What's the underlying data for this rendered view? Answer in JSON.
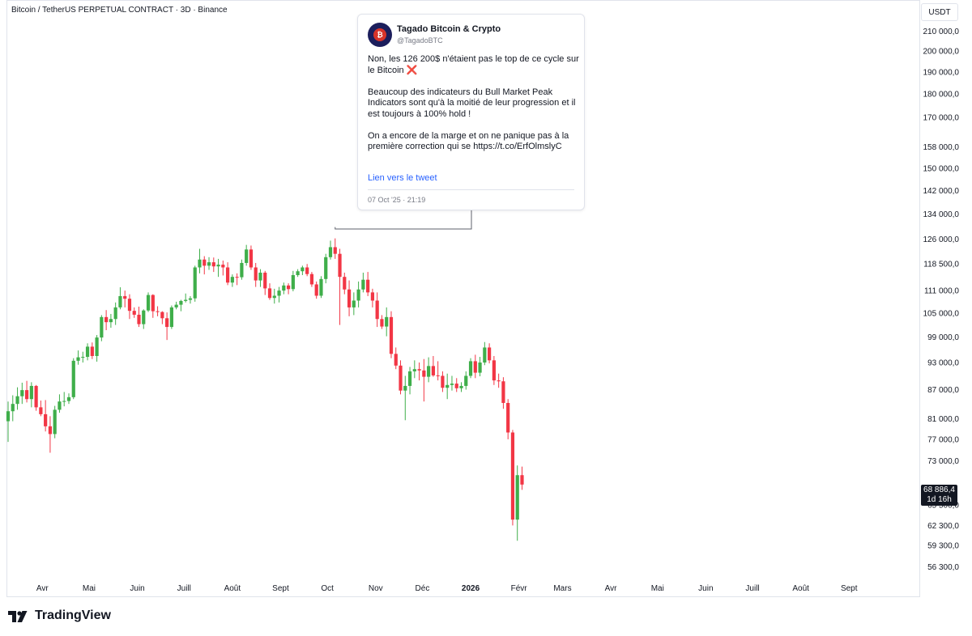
{
  "header": {
    "symbol_title": "Bitcoin / TetherUS PERPETUAL CONTRACT · 3D · Binance",
    "currency": "USDT"
  },
  "price_badge": {
    "price": "68 886,4",
    "countdown": "1d 16h"
  },
  "tweet": {
    "name": "Tagado Bitcoin & Crypto",
    "handle": "@TagadoBTC",
    "text": "Non, les 126 200$ n'étaient pas le top de ce cycle sur le Bitcoin ❌\n\nBeaucoup des indicateurs du Bull Market Peak Indicators sont qu'à la moitié de leur progression et il est toujours à 100% hold !\n\nOn a encore de la marge et on ne panique pas à la première correction qui se https://t.co/ErfOlmslyC",
    "link_label": "Lien vers le tweet",
    "date": "07 Oct '25 · 21:19"
  },
  "branding": {
    "logo_text": "TradingView"
  },
  "colors": {
    "up": "#26a69a",
    "up_green": "#3fae4a",
    "down": "#f23645",
    "axis_text": "#131722",
    "grid": "#e0e3eb"
  },
  "chart_data": {
    "type": "candlestick",
    "title": "Bitcoin / TetherUS PERPETUAL CONTRACT · 3D · Binance",
    "y_scale": "log",
    "ylim": [
      55000,
      225000
    ],
    "y_ticks": [
      {
        "value": 210000,
        "label": "210 000,0"
      },
      {
        "value": 200000,
        "label": "200 000,0"
      },
      {
        "value": 190000,
        "label": "190 000,0"
      },
      {
        "value": 180000,
        "label": "180 000,0"
      },
      {
        "value": 170000,
        "label": "170 000,0"
      },
      {
        "value": 158000,
        "label": "158 000,0"
      },
      {
        "value": 150000,
        "label": "150 000,0"
      },
      {
        "value": 142000,
        "label": "142 000,0"
      },
      {
        "value": 134000,
        "label": "134 000,0"
      },
      {
        "value": 126000,
        "label": "126 000,0"
      },
      {
        "value": 118500,
        "label": "118 500,0"
      },
      {
        "value": 111000,
        "label": "111 000,0"
      },
      {
        "value": 105000,
        "label": "105 000,0"
      },
      {
        "value": 99000,
        "label": "99 000,0"
      },
      {
        "value": 93000,
        "label": "93 000,0"
      },
      {
        "value": 87000,
        "label": "87 000,0"
      },
      {
        "value": 81000,
        "label": "81 000,0"
      },
      {
        "value": 77000,
        "label": "77 000,0"
      },
      {
        "value": 73000,
        "label": "73 000,0"
      },
      {
        "value": 65500,
        "label": "65 500,0"
      },
      {
        "value": 62300,
        "label": "62 300,0"
      },
      {
        "value": 59300,
        "label": "59 300,0"
      },
      {
        "value": 56300,
        "label": "56 300,0"
      }
    ],
    "x_range": [
      "2025-03-10",
      "2026-09-30"
    ],
    "x_ticks": [
      {
        "date": "2025-04-01",
        "label": "Avr",
        "bold": false
      },
      {
        "date": "2025-05-01",
        "label": "Mai",
        "bold": false
      },
      {
        "date": "2025-06-01",
        "label": "Juin",
        "bold": false
      },
      {
        "date": "2025-07-01",
        "label": "Juill",
        "bold": false
      },
      {
        "date": "2025-08-01",
        "label": "Août",
        "bold": false
      },
      {
        "date": "2025-09-01",
        "label": "Sept",
        "bold": false
      },
      {
        "date": "2025-10-01",
        "label": "Oct",
        "bold": false
      },
      {
        "date": "2025-11-01",
        "label": "Nov",
        "bold": false
      },
      {
        "date": "2025-12-01",
        "label": "Déc",
        "bold": false
      },
      {
        "date": "2026-01-01",
        "label": "2026",
        "bold": true
      },
      {
        "date": "2026-02-01",
        "label": "Févr",
        "bold": false
      },
      {
        "date": "2026-03-01",
        "label": "Mars",
        "bold": false
      },
      {
        "date": "2026-04-01",
        "label": "Avr",
        "bold": false
      },
      {
        "date": "2026-05-01",
        "label": "Mai",
        "bold": false
      },
      {
        "date": "2026-06-01",
        "label": "Juin",
        "bold": false
      },
      {
        "date": "2026-07-01",
        "label": "Juill",
        "bold": false
      },
      {
        "date": "2026-08-01",
        "label": "Août",
        "bold": false
      },
      {
        "date": "2026-09-01",
        "label": "Sept",
        "bold": false
      }
    ],
    "candles": [
      {
        "date": "2025-03-10",
        "o": 80500,
        "h": 84500,
        "l": 76500,
        "c": 82500
      },
      {
        "date": "2025-03-13",
        "o": 82500,
        "h": 85800,
        "l": 80500,
        "c": 84000
      },
      {
        "date": "2025-03-16",
        "o": 84000,
        "h": 87500,
        "l": 82800,
        "c": 85600
      },
      {
        "date": "2025-03-19",
        "o": 85600,
        "h": 88500,
        "l": 84000,
        "c": 86900
      },
      {
        "date": "2025-03-22",
        "o": 86900,
        "h": 88900,
        "l": 84300,
        "c": 85000
      },
      {
        "date": "2025-03-25",
        "o": 85000,
        "h": 88600,
        "l": 83300,
        "c": 87800
      },
      {
        "date": "2025-03-28",
        "o": 87800,
        "h": 88000,
        "l": 82600,
        "c": 83300
      },
      {
        "date": "2025-03-31",
        "o": 83300,
        "h": 84700,
        "l": 81500,
        "c": 81900
      },
      {
        "date": "2025-04-03",
        "o": 81900,
        "h": 84800,
        "l": 78500,
        "c": 79500
      },
      {
        "date": "2025-04-06",
        "o": 79500,
        "h": 81500,
        "l": 74500,
        "c": 78000
      },
      {
        "date": "2025-04-09",
        "o": 78000,
        "h": 83600,
        "l": 77200,
        "c": 82800
      },
      {
        "date": "2025-04-12",
        "o": 82800,
        "h": 86000,
        "l": 82200,
        "c": 84500
      },
      {
        "date": "2025-04-15",
        "o": 84500,
        "h": 86500,
        "l": 83500,
        "c": 84600
      },
      {
        "date": "2025-04-18",
        "o": 84600,
        "h": 86200,
        "l": 84000,
        "c": 85400
      },
      {
        "date": "2025-04-21",
        "o": 85400,
        "h": 94000,
        "l": 85000,
        "c": 93400
      },
      {
        "date": "2025-04-24",
        "o": 93400,
        "h": 95800,
        "l": 92500,
        "c": 94200
      },
      {
        "date": "2025-04-27",
        "o": 94200,
        "h": 95500,
        "l": 93000,
        "c": 94300
      },
      {
        "date": "2025-04-30",
        "o": 94300,
        "h": 97500,
        "l": 93500,
        "c": 96700
      },
      {
        "date": "2025-05-03",
        "o": 96700,
        "h": 97700,
        "l": 93800,
        "c": 94500
      },
      {
        "date": "2025-05-06",
        "o": 94500,
        "h": 99500,
        "l": 93200,
        "c": 98900
      },
      {
        "date": "2025-05-09",
        "o": 98900,
        "h": 104500,
        "l": 98000,
        "c": 104000
      },
      {
        "date": "2025-05-12",
        "o": 104000,
        "h": 105800,
        "l": 100700,
        "c": 102700
      },
      {
        "date": "2025-05-15",
        "o": 102700,
        "h": 104800,
        "l": 101300,
        "c": 103500
      },
      {
        "date": "2025-05-18",
        "o": 103500,
        "h": 107800,
        "l": 102000,
        "c": 106500
      },
      {
        "date": "2025-05-21",
        "o": 106500,
        "h": 111900,
        "l": 106000,
        "c": 109500
      },
      {
        "date": "2025-05-24",
        "o": 109500,
        "h": 111000,
        "l": 106500,
        "c": 108800
      },
      {
        "date": "2025-05-27",
        "o": 108800,
        "h": 110000,
        "l": 103500,
        "c": 105600
      },
      {
        "date": "2025-05-30",
        "o": 105600,
        "h": 106500,
        "l": 103800,
        "c": 104600
      },
      {
        "date": "2025-06-02",
        "o": 104600,
        "h": 106700,
        "l": 101500,
        "c": 102200
      },
      {
        "date": "2025-06-05",
        "o": 102200,
        "h": 106000,
        "l": 101000,
        "c": 105700
      },
      {
        "date": "2025-06-08",
        "o": 105700,
        "h": 110500,
        "l": 105300,
        "c": 109800
      },
      {
        "date": "2025-06-11",
        "o": 109800,
        "h": 110000,
        "l": 103800,
        "c": 105500
      },
      {
        "date": "2025-06-14",
        "o": 105500,
        "h": 106800,
        "l": 104200,
        "c": 105300
      },
      {
        "date": "2025-06-17",
        "o": 105300,
        "h": 105500,
        "l": 102200,
        "c": 103700
      },
      {
        "date": "2025-06-20",
        "o": 103700,
        "h": 105200,
        "l": 98300,
        "c": 101500
      },
      {
        "date": "2025-06-23",
        "o": 101500,
        "h": 107000,
        "l": 101000,
        "c": 106500
      },
      {
        "date": "2025-06-26",
        "o": 106500,
        "h": 108000,
        "l": 106000,
        "c": 107200
      },
      {
        "date": "2025-06-29",
        "o": 107200,
        "h": 108500,
        "l": 105500,
        "c": 108200
      },
      {
        "date": "2025-07-02",
        "o": 108200,
        "h": 110200,
        "l": 107800,
        "c": 108500
      },
      {
        "date": "2025-07-05",
        "o": 108500,
        "h": 109500,
        "l": 107500,
        "c": 108900
      },
      {
        "date": "2025-07-08",
        "o": 108900,
        "h": 118000,
        "l": 108000,
        "c": 117500
      },
      {
        "date": "2025-07-11",
        "o": 117500,
        "h": 123000,
        "l": 115800,
        "c": 119800
      },
      {
        "date": "2025-07-14",
        "o": 119800,
        "h": 120800,
        "l": 115500,
        "c": 118000
      },
      {
        "date": "2025-07-17",
        "o": 118000,
        "h": 120500,
        "l": 116800,
        "c": 119000
      },
      {
        "date": "2025-07-20",
        "o": 119000,
        "h": 120400,
        "l": 116200,
        "c": 117800
      },
      {
        "date": "2025-07-23",
        "o": 117800,
        "h": 120000,
        "l": 114800,
        "c": 118300
      },
      {
        "date": "2025-07-26",
        "o": 118300,
        "h": 119500,
        "l": 115200,
        "c": 117500
      },
      {
        "date": "2025-07-29",
        "o": 117500,
        "h": 119000,
        "l": 112500,
        "c": 113200
      },
      {
        "date": "2025-08-01",
        "o": 113200,
        "h": 115500,
        "l": 112000,
        "c": 114800
      },
      {
        "date": "2025-08-04",
        "o": 114800,
        "h": 115800,
        "l": 112500,
        "c": 114700
      },
      {
        "date": "2025-08-07",
        "o": 114700,
        "h": 119800,
        "l": 114000,
        "c": 118800
      },
      {
        "date": "2025-08-10",
        "o": 118800,
        "h": 124200,
        "l": 118000,
        "c": 122800
      },
      {
        "date": "2025-08-13",
        "o": 122800,
        "h": 124000,
        "l": 116800,
        "c": 117500
      },
      {
        "date": "2025-08-16",
        "o": 117500,
        "h": 118800,
        "l": 112000,
        "c": 113800
      },
      {
        "date": "2025-08-19",
        "o": 113800,
        "h": 117000,
        "l": 112000,
        "c": 116000
      },
      {
        "date": "2025-08-22",
        "o": 116000,
        "h": 116500,
        "l": 109800,
        "c": 111600
      },
      {
        "date": "2025-08-25",
        "o": 111600,
        "h": 113000,
        "l": 108500,
        "c": 109000
      },
      {
        "date": "2025-08-28",
        "o": 109000,
        "h": 111500,
        "l": 107500,
        "c": 109600
      },
      {
        "date": "2025-08-31",
        "o": 109600,
        "h": 112000,
        "l": 107800,
        "c": 111000
      },
      {
        "date": "2025-09-03",
        "o": 111000,
        "h": 113200,
        "l": 110000,
        "c": 112400
      },
      {
        "date": "2025-09-06",
        "o": 112400,
        "h": 113000,
        "l": 110000,
        "c": 111400
      },
      {
        "date": "2025-09-09",
        "o": 111400,
        "h": 116500,
        "l": 110800,
        "c": 115300
      },
      {
        "date": "2025-09-12",
        "o": 115300,
        "h": 117000,
        "l": 114800,
        "c": 116400
      },
      {
        "date": "2025-09-15",
        "o": 116400,
        "h": 118000,
        "l": 115300,
        "c": 117500
      },
      {
        "date": "2025-09-18",
        "o": 117500,
        "h": 118500,
        "l": 115000,
        "c": 115600
      },
      {
        "date": "2025-09-21",
        "o": 115600,
        "h": 116200,
        "l": 112000,
        "c": 112700
      },
      {
        "date": "2025-09-24",
        "o": 112700,
        "h": 113500,
        "l": 108800,
        "c": 109600
      },
      {
        "date": "2025-09-27",
        "o": 109600,
        "h": 115000,
        "l": 109000,
        "c": 114200
      },
      {
        "date": "2025-09-30",
        "o": 114200,
        "h": 121500,
        "l": 113000,
        "c": 120500
      },
      {
        "date": "2025-10-03",
        "o": 120500,
        "h": 125500,
        "l": 119800,
        "c": 123500
      },
      {
        "date": "2025-10-06",
        "o": 123500,
        "h": 126200,
        "l": 120000,
        "c": 121500
      },
      {
        "date": "2025-10-09",
        "o": 121500,
        "h": 123000,
        "l": 102000,
        "c": 114800
      },
      {
        "date": "2025-10-12",
        "o": 114800,
        "h": 116000,
        "l": 110000,
        "c": 111300
      },
      {
        "date": "2025-10-15",
        "o": 111300,
        "h": 113800,
        "l": 104200,
        "c": 106500
      },
      {
        "date": "2025-10-18",
        "o": 106500,
        "h": 110500,
        "l": 104500,
        "c": 108300
      },
      {
        "date": "2025-10-21",
        "o": 108300,
        "h": 113500,
        "l": 106500,
        "c": 111300
      },
      {
        "date": "2025-10-24",
        "o": 111300,
        "h": 116000,
        "l": 110500,
        "c": 114000
      },
      {
        "date": "2025-10-27",
        "o": 114000,
        "h": 116200,
        "l": 109500,
        "c": 110500
      },
      {
        "date": "2025-10-30",
        "o": 110500,
        "h": 111500,
        "l": 106500,
        "c": 108300
      },
      {
        "date": "2025-11-02",
        "o": 108300,
        "h": 110500,
        "l": 101500,
        "c": 103500
      },
      {
        "date": "2025-11-05",
        "o": 103500,
        "h": 104500,
        "l": 101000,
        "c": 101600
      },
      {
        "date": "2025-11-08",
        "o": 101600,
        "h": 106500,
        "l": 99200,
        "c": 104000
      },
      {
        "date": "2025-11-11",
        "o": 104000,
        "h": 105500,
        "l": 94000,
        "c": 95000
      },
      {
        "date": "2025-11-14",
        "o": 95000,
        "h": 96500,
        "l": 91500,
        "c": 92300
      },
      {
        "date": "2025-11-17",
        "o": 92300,
        "h": 93500,
        "l": 86000,
        "c": 86800
      },
      {
        "date": "2025-11-20",
        "o": 86800,
        "h": 90000,
        "l": 80700,
        "c": 87800
      },
      {
        "date": "2025-11-23",
        "o": 87800,
        "h": 92000,
        "l": 86000,
        "c": 91000
      },
      {
        "date": "2025-11-26",
        "o": 91000,
        "h": 93500,
        "l": 89500,
        "c": 91500
      },
      {
        "date": "2025-11-29",
        "o": 91500,
        "h": 93000,
        "l": 89000,
        "c": 91200
      },
      {
        "date": "2025-12-02",
        "o": 91200,
        "h": 93800,
        "l": 84500,
        "c": 89800
      },
      {
        "date": "2025-12-05",
        "o": 89800,
        "h": 94200,
        "l": 88600,
        "c": 92200
      },
      {
        "date": "2025-12-08",
        "o": 92200,
        "h": 94500,
        "l": 89800,
        "c": 90100
      },
      {
        "date": "2025-12-11",
        "o": 90100,
        "h": 93300,
        "l": 89000,
        "c": 90000
      },
      {
        "date": "2025-12-14",
        "o": 90000,
        "h": 91000,
        "l": 86500,
        "c": 87400
      },
      {
        "date": "2025-12-17",
        "o": 87400,
        "h": 90500,
        "l": 85000,
        "c": 88000
      },
      {
        "date": "2025-12-20",
        "o": 88000,
        "h": 90000,
        "l": 86800,
        "c": 88300
      },
      {
        "date": "2025-12-23",
        "o": 88300,
        "h": 89500,
        "l": 86500,
        "c": 87300
      },
      {
        "date": "2025-12-26",
        "o": 87300,
        "h": 88600,
        "l": 86500,
        "c": 87800
      },
      {
        "date": "2025-12-29",
        "o": 87800,
        "h": 91000,
        "l": 87000,
        "c": 90000
      },
      {
        "date": "2026-01-01",
        "o": 90000,
        "h": 94000,
        "l": 89500,
        "c": 93300
      },
      {
        "date": "2026-01-04",
        "o": 93300,
        "h": 94800,
        "l": 89500,
        "c": 90700
      },
      {
        "date": "2026-01-07",
        "o": 90700,
        "h": 94300,
        "l": 89900,
        "c": 93000
      },
      {
        "date": "2026-01-10",
        "o": 93000,
        "h": 97800,
        "l": 92400,
        "c": 96500
      },
      {
        "date": "2026-01-13",
        "o": 96500,
        "h": 97500,
        "l": 92800,
        "c": 93500
      },
      {
        "date": "2026-01-16",
        "o": 93500,
        "h": 94500,
        "l": 88000,
        "c": 89000
      },
      {
        "date": "2026-01-19",
        "o": 89000,
        "h": 90500,
        "l": 87400,
        "c": 88800
      },
      {
        "date": "2026-01-22",
        "o": 88800,
        "h": 89700,
        "l": 83000,
        "c": 84200
      },
      {
        "date": "2026-01-25",
        "o": 84200,
        "h": 85000,
        "l": 77000,
        "c": 78300
      },
      {
        "date": "2026-01-28",
        "o": 78300,
        "h": 78800,
        "l": 62300,
        "c": 63200
      },
      {
        "date": "2026-01-31",
        "o": 63200,
        "h": 72200,
        "l": 60000,
        "c": 70500
      },
      {
        "date": "2026-02-03",
        "o": 70500,
        "h": 72000,
        "l": 68000,
        "c": 68886
      }
    ],
    "last_price": 68886.4,
    "annotation": {
      "anchor_date": "2025-10-06",
      "anchor_price": 126200
    }
  }
}
